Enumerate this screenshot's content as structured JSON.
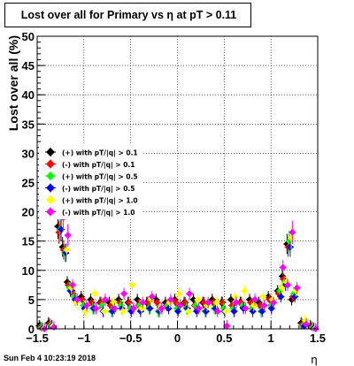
{
  "footer_timestamp": "Sun Feb  4 10:23:19 2018",
  "chart_data": {
    "type": "scatter",
    "title": "Lost over all for Primary vs  η at pT > 0.11",
    "xlabel": "η",
    "ylabel": "Lost over all (%)",
    "xlim": [
      -1.5,
      1.5
    ],
    "ylim": [
      0,
      50
    ],
    "x_ticks": [
      "−1.5",
      "−1",
      "−0.5",
      "0",
      "0.5",
      "1",
      "1.5"
    ],
    "y_ticks": [
      "0",
      "5",
      "10",
      "15",
      "20",
      "25",
      "30",
      "35",
      "40",
      "45",
      "50"
    ],
    "grid": true,
    "legend_position": "left-middle",
    "series": [
      {
        "name": "(+) with pT/|q| > 0.1",
        "color": "#000000",
        "x": [
          -1.45,
          -1.35,
          -1.25,
          -1.2,
          -1.15,
          -1.1,
          -1.0,
          -0.9,
          -0.8,
          -0.7,
          -0.6,
          -0.5,
          -0.4,
          -0.3,
          -0.2,
          -0.1,
          0.0,
          0.1,
          0.2,
          0.3,
          0.4,
          0.5,
          0.6,
          0.7,
          0.8,
          0.9,
          1.0,
          1.1,
          1.15,
          1.2,
          1.25,
          1.35,
          1.45
        ],
        "y": [
          0.5,
          1.0,
          17.5,
          14.0,
          8.0,
          6.5,
          5.5,
          5.0,
          4.5,
          4.5,
          5.0,
          4.5,
          5.0,
          4.5,
          5.0,
          4.5,
          5.0,
          4.5,
          5.0,
          4.5,
          5.0,
          4.5,
          5.0,
          4.5,
          5.0,
          4.5,
          5.5,
          6.5,
          9.0,
          14.5,
          5.0,
          1.0,
          0.5
        ]
      },
      {
        "name": "(-) with pT/|q| > 0.1",
        "color": "#ff0000",
        "x": [
          -1.45,
          -1.35,
          -1.25,
          -1.2,
          -1.15,
          -1.1,
          -1.0,
          -0.9,
          -0.8,
          -0.7,
          -0.6,
          -0.5,
          -0.4,
          -0.3,
          -0.2,
          -0.1,
          0.0,
          0.1,
          0.2,
          0.3,
          0.4,
          0.5,
          0.6,
          0.7,
          0.8,
          0.9,
          1.0,
          1.1,
          1.15,
          1.2,
          1.25,
          1.35,
          1.45
        ],
        "y": [
          0.3,
          0.8,
          16.5,
          13.5,
          7.5,
          6.0,
          5.0,
          4.5,
          4.5,
          4.0,
          4.5,
          4.5,
          4.0,
          4.5,
          4.5,
          4.0,
          4.5,
          4.5,
          4.0,
          4.5,
          4.5,
          4.5,
          4.0,
          4.5,
          4.5,
          4.0,
          5.0,
          6.0,
          8.5,
          14.0,
          5.5,
          0.8,
          0.3
        ]
      },
      {
        "name": "(+) with pT/|q| > 0.5",
        "color": "#00ff00",
        "x": [
          -1.45,
          -1.35,
          -1.25,
          -1.2,
          -1.15,
          -1.1,
          -1.0,
          -0.9,
          -0.8,
          -0.7,
          -0.6,
          -0.5,
          -0.4,
          -0.3,
          -0.2,
          -0.1,
          0.0,
          0.1,
          0.2,
          0.3,
          0.4,
          0.5,
          0.6,
          0.7,
          0.8,
          0.9,
          1.0,
          1.1,
          1.15,
          1.2,
          1.25,
          1.35,
          1.45
        ],
        "y": [
          0.2,
          0.6,
          17.0,
          13.0,
          7.0,
          5.5,
          4.0,
          3.5,
          4.0,
          3.0,
          4.0,
          3.5,
          4.0,
          3.5,
          3.0,
          4.0,
          3.5,
          3.5,
          4.0,
          3.0,
          3.5,
          3.5,
          3.5,
          4.0,
          3.5,
          3.0,
          4.0,
          6.5,
          8.0,
          15.0,
          6.0,
          0.6,
          0.2
        ]
      },
      {
        "name": "(-) with pT/|q| > 0.5",
        "color": "#0000ff",
        "x": [
          -1.45,
          -1.35,
          -1.25,
          -1.2,
          -1.15,
          -1.1,
          -1.0,
          -0.9,
          -0.8,
          -0.7,
          -0.6,
          -0.5,
          -0.4,
          -0.3,
          -0.2,
          -0.1,
          0.0,
          0.1,
          0.2,
          0.3,
          0.4,
          0.5,
          0.6,
          0.7,
          0.8,
          0.9,
          1.0,
          1.1,
          1.15,
          1.2,
          1.25,
          1.35,
          1.45
        ],
        "y": [
          0.1,
          0.5,
          17.0,
          13.0,
          6.5,
          5.0,
          3.5,
          3.5,
          3.0,
          3.0,
          3.5,
          3.0,
          3.0,
          3.5,
          3.0,
          3.5,
          3.0,
          3.5,
          3.0,
          3.0,
          3.5,
          3.0,
          3.0,
          3.5,
          3.0,
          3.0,
          3.5,
          5.5,
          7.5,
          14.0,
          5.5,
          0.5,
          0.1
        ]
      },
      {
        "name": "(+) with pT/|q| > 1.0",
        "color": "#ffff00",
        "x": [
          -1.45,
          -1.35,
          -1.25,
          -1.2,
          -1.15,
          -1.1,
          -1.0,
          -0.9,
          -0.8,
          -0.7,
          -0.6,
          -0.5,
          -0.4,
          -0.3,
          -0.2,
          -0.1,
          0.0,
          0.1,
          0.2,
          0.3,
          0.4,
          0.5,
          0.6,
          0.7,
          0.8,
          0.9,
          1.0,
          1.1,
          1.15,
          1.2,
          1.25,
          1.35,
          1.45
        ],
        "y": [
          0.0,
          0.5,
          20.0,
          13.5,
          7.0,
          4.5,
          3.0,
          6.0,
          3.0,
          4.5,
          3.0,
          7.5,
          3.5,
          5.0,
          3.5,
          4.5,
          6.0,
          3.0,
          5.0,
          4.0,
          4.5,
          3.0,
          5.5,
          6.5,
          4.0,
          5.5,
          5.0,
          7.0,
          8.0,
          15.5,
          6.5,
          1.5,
          0.0
        ]
      },
      {
        "name": "(-) with pT/|q| > 1.0",
        "color": "#ff00ff",
        "x": [
          -1.45,
          -1.35,
          -1.25,
          -1.2,
          -1.15,
          -1.1,
          -1.0,
          -0.9,
          -0.8,
          -0.7,
          -0.6,
          -0.5,
          -0.4,
          -0.3,
          -0.2,
          -0.1,
          0.0,
          0.1,
          0.2,
          0.3,
          0.4,
          0.5,
          0.6,
          0.7,
          0.8,
          0.9,
          1.0,
          1.1,
          1.15,
          1.2,
          1.25,
          1.35,
          1.45
        ],
        "y": [
          0.0,
          0.3,
          19.0,
          16.0,
          7.5,
          5.0,
          4.0,
          3.5,
          5.0,
          3.5,
          6.0,
          3.5,
          4.5,
          5.5,
          3.5,
          5.0,
          4.0,
          6.0,
          3.5,
          4.5,
          3.0,
          0.5,
          4.5,
          3.5,
          5.0,
          4.0,
          4.5,
          10.5,
          7.5,
          16.5,
          7.0,
          0.8,
          0.0
        ]
      }
    ]
  }
}
